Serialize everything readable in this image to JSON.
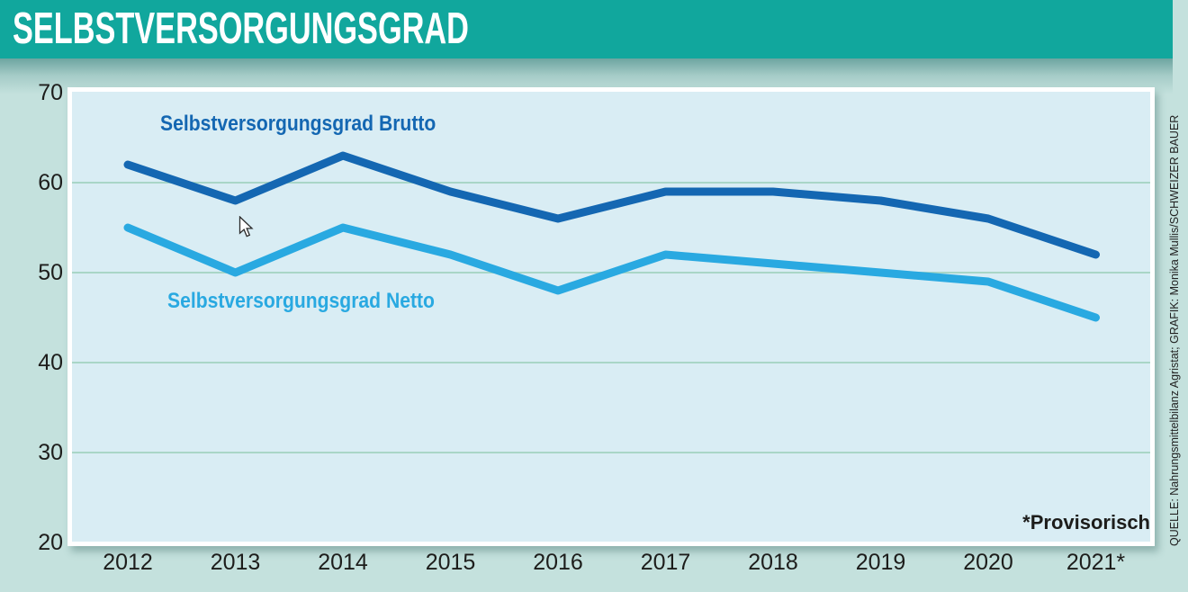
{
  "header": {
    "title": "SELBSTVERSORGUNGSGRAD"
  },
  "chart_data": {
    "type": "line",
    "x": [
      2012,
      2013,
      2014,
      2015,
      2016,
      2017,
      2018,
      2019,
      2020,
      2021
    ],
    "x_tick_labels": [
      "2012",
      "2013",
      "2014",
      "2015",
      "2016",
      "2017",
      "2018",
      "2019",
      "2020",
      "2021*"
    ],
    "series": [
      {
        "name": "Selbstversorgungsgrad Brutto",
        "color": "#1467b2",
        "values": [
          62,
          58,
          63,
          59,
          56,
          59,
          59,
          58,
          56,
          52
        ]
      },
      {
        "name": "Selbstversorgungsgrad Netto",
        "color": "#29a9e1",
        "values": [
          55,
          50,
          55,
          52,
          48,
          52,
          51,
          50,
          49,
          45
        ]
      }
    ],
    "ylim": [
      20,
      70
    ],
    "yticks": [
      70,
      60,
      50,
      40,
      30,
      20
    ],
    "xlabel": "",
    "ylabel": "",
    "title": "SELBSTVERSORGUNGSGRAD",
    "grid": "horizontal",
    "gridline_color": "#a9d6c7",
    "legend_position": "inline-labels"
  },
  "annotations": {
    "provisional_note": "*Provisorisch"
  },
  "source_credit": "QUELLE: Nahrungsmittelbilanz Agristat; GRAFIK: Monika Mullis/SCHWEIZER BAUER",
  "colors": {
    "header_bar": "#11a79d",
    "page_background": "#c4e1dd",
    "plot_background": "#d9edf4",
    "plot_border": "#ffffff",
    "axis_text": "#1d1d1b",
    "brutto_line": "#1467b2",
    "netto_line": "#29a9e1"
  }
}
